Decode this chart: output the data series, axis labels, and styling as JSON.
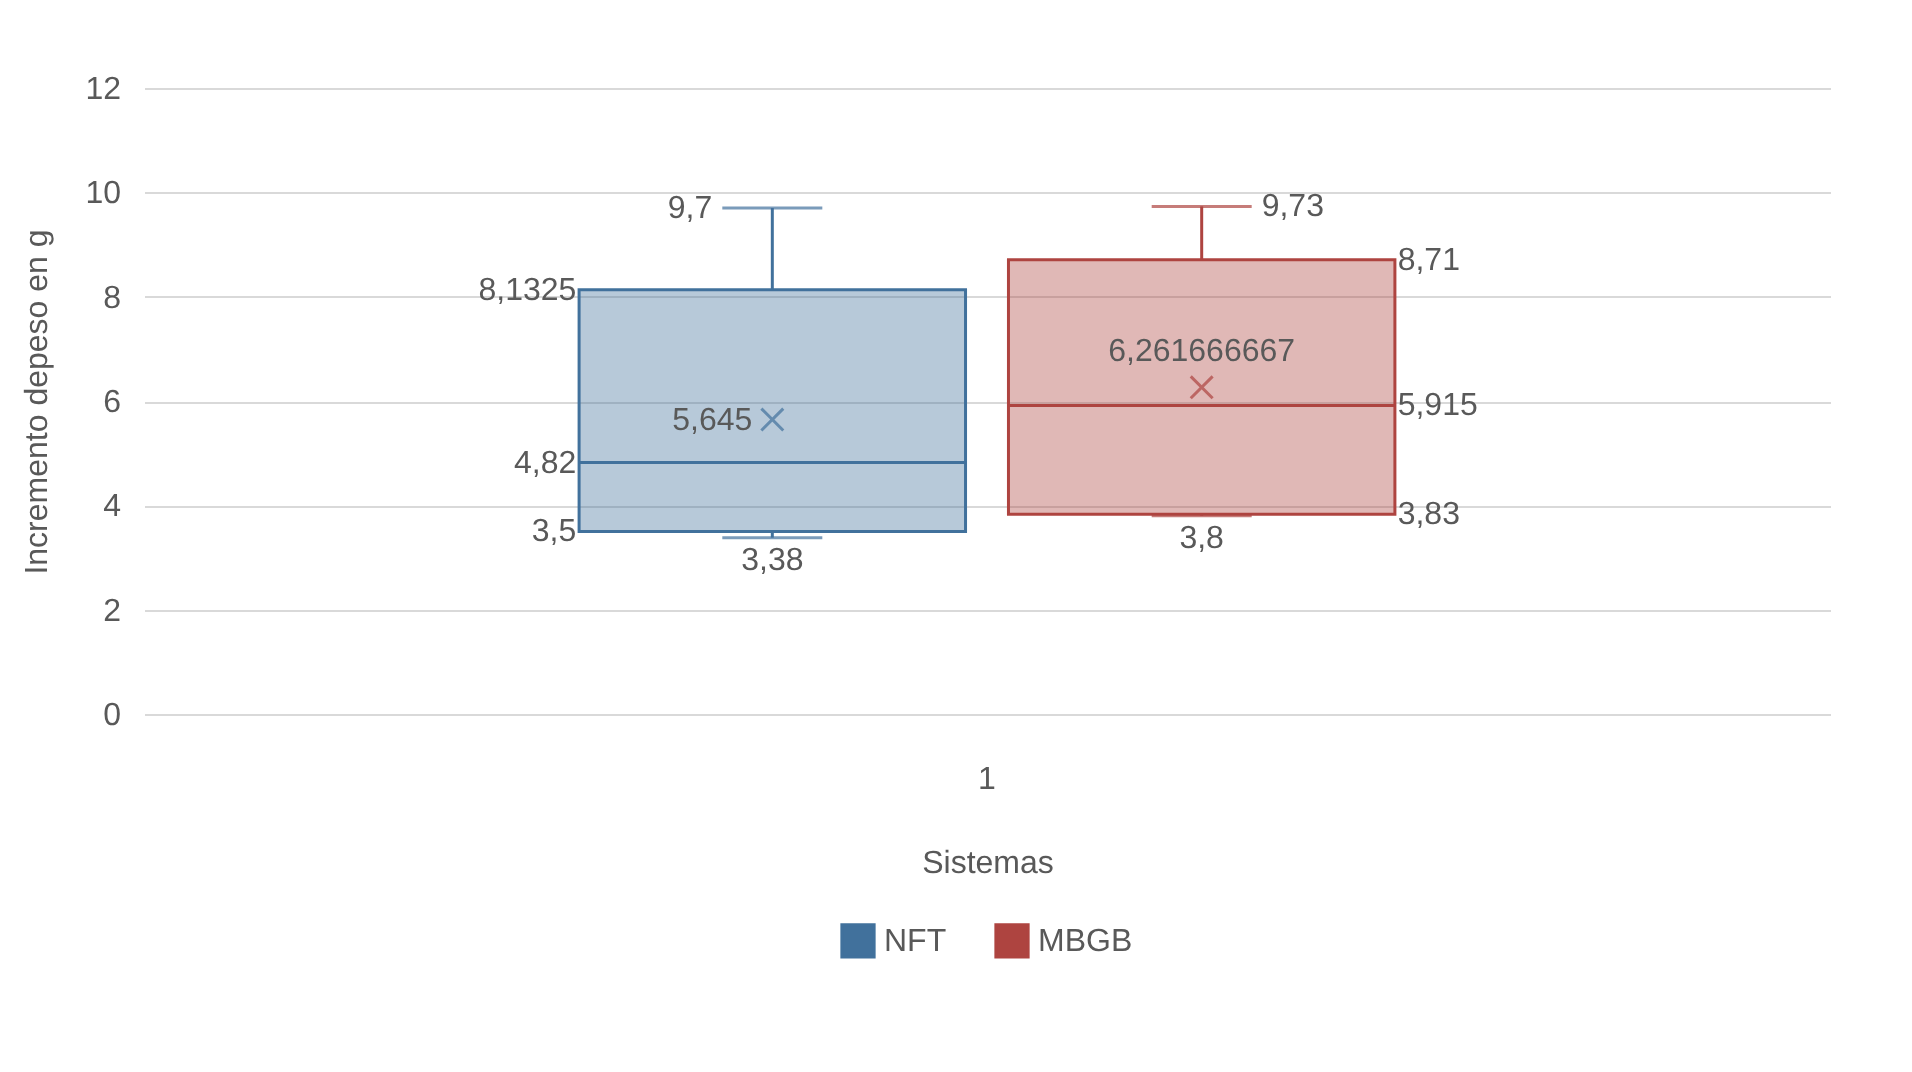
{
  "chart_data": {
    "type": "box",
    "categories": [
      "1"
    ],
    "xlabel": "Sistemas",
    "ylabel": "Incremento depeso en g",
    "ylim": [
      0,
      12
    ],
    "yticks": [
      0,
      2,
      4,
      6,
      8,
      10,
      12
    ],
    "grid": "y",
    "legend": "bottom",
    "series": [
      {
        "name": "NFT",
        "color": "#41719c",
        "boxes": [
          {
            "low": 3.38,
            "q1": 3.5,
            "median": 4.82,
            "q3": 8.1325,
            "high": 9.7,
            "mean": 5.645
          }
        ]
      },
      {
        "name": "MBGB",
        "color": "#ae4440",
        "boxes": [
          {
            "low": 3.8,
            "q1": 3.83,
            "median": 5.915,
            "q3": 8.71,
            "high": 9.73,
            "mean": 6.261666667
          }
        ]
      }
    ],
    "annotations": [
      "3,38",
      "3,5",
      "4,82",
      "8,1325",
      "9,7",
      "5,645",
      "3,8",
      "3,83",
      "5,915",
      "8,71",
      "9,73",
      "6,261666667"
    ]
  }
}
